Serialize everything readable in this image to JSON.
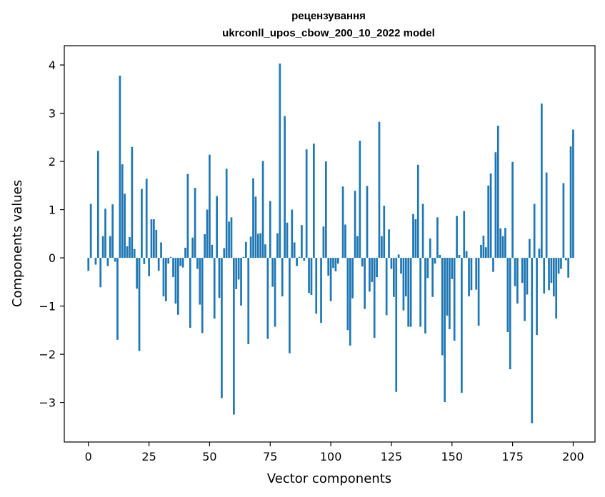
{
  "chart_data": {
    "type": "bar",
    "title": "рецензування",
    "subtitle": "ukrconll_upos_cbow_200_10_2022 model",
    "xlabel": "Vector components",
    "ylabel": "Components values",
    "xlim": [
      -9.95,
      209
    ],
    "ylim": [
      -3.82,
      4.4
    ],
    "xticks": [
      0,
      25,
      50,
      75,
      100,
      125,
      150,
      175,
      200
    ],
    "yticks": [
      -3,
      -2,
      -1,
      0,
      1,
      2,
      3,
      4
    ],
    "xtick_labels": [
      "0",
      "25",
      "50",
      "75",
      "100",
      "125",
      "150",
      "175",
      "200"
    ],
    "ytick_labels": [
      "−3",
      "−2",
      "−1",
      "0",
      "1",
      "2",
      "3",
      "4"
    ],
    "grid": false,
    "color": "#1f77b4",
    "values": [
      -0.27,
      1.12,
      0.0,
      -0.14,
      2.22,
      -0.61,
      0.45,
      1.02,
      -0.17,
      0.45,
      1.11,
      -0.08,
      -1.7,
      3.78,
      1.94,
      1.33,
      0.24,
      0.43,
      2.3,
      0.18,
      -0.64,
      -1.93,
      1.43,
      -0.13,
      1.64,
      -0.38,
      0.8,
      0.8,
      0.58,
      -0.27,
      0.32,
      -0.8,
      -0.9,
      -0.12,
      0.02,
      -0.4,
      -0.95,
      -1.18,
      -0.17,
      -0.2,
      0.21,
      1.74,
      -1.45,
      0.42,
      1.45,
      -0.23,
      -0.97,
      -1.56,
      0.49,
      1.0,
      2.14,
      0.27,
      -1.26,
      1.28,
      -0.83,
      -2.91,
      0.2,
      1.85,
      0.75,
      0.84,
      -3.25,
      -0.65,
      -0.45,
      -0.99,
      0.02,
      0.33,
      -1.79,
      0.44,
      1.65,
      1.27,
      0.5,
      0.51,
      2.01,
      0.28,
      -1.68,
      1.18,
      -0.6,
      -1.43,
      0.51,
      4.03,
      -0.8,
      2.94,
      0.73,
      -1.98,
      1.0,
      0.32,
      -0.17,
      0.02,
      0.68,
      -0.06,
      2.25,
      -0.73,
      -0.77,
      2.37,
      -1.16,
      0.0,
      -1.35,
      0.65,
      2.0,
      -0.37,
      -0.9,
      -0.21,
      -0.28,
      -0.12,
      0.0,
      1.48,
      0.69,
      -1.5,
      -1.82,
      -0.84,
      1.39,
      0.45,
      2.43,
      -0.18,
      -1.06,
      1.49,
      -0.7,
      -0.5,
      -1.66,
      -0.4,
      2.82,
      0.45,
      1.08,
      -1.19,
      0.59,
      -0.23,
      -0.81,
      -2.78,
      0.07,
      -0.33,
      -1.09,
      -0.8,
      -1.43,
      -1.43,
      0.91,
      0.8,
      1.93,
      -1.43,
      1.12,
      -1.57,
      -0.42,
      0.4,
      -0.81,
      -0.12,
      0.84,
      0.06,
      -2.02,
      -2.99,
      -1.2,
      -1.48,
      -0.44,
      -1.72,
      0.87,
      0.06,
      -2.8,
      0.97,
      0.14,
      -0.8,
      -0.67,
      0.0,
      -0.66,
      -1.41,
      0.27,
      0.46,
      0.22,
      1.5,
      1.75,
      -0.29,
      2.19,
      2.74,
      0.61,
      0.45,
      0.62,
      -1.54,
      -2.31,
      1.99,
      -0.59,
      -0.95,
      0.0,
      -0.52,
      -1.31,
      -0.76,
      0.39,
      -3.43,
      1.12,
      -1.6,
      0.19,
      3.2,
      -0.74,
      1.77,
      -0.67,
      -0.52,
      -0.8,
      -1.26,
      -0.33,
      -0.23,
      1.55,
      -0.05,
      -0.41,
      2.31,
      2.66
    ]
  }
}
